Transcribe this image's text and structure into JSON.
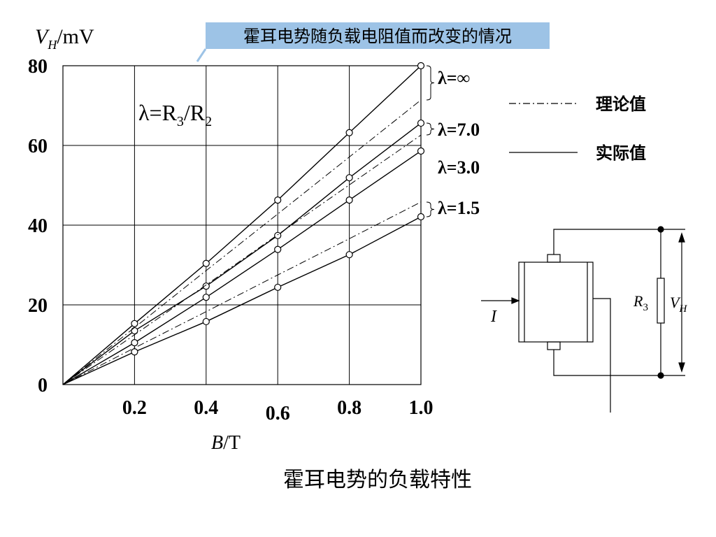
{
  "chart_data": {
    "type": "line",
    "banner": "霍耳电势随负载电阻值而改变的情况",
    "caption": "霍耳电势的负载特性",
    "formula": {
      "lhs": "λ=R",
      "sub1": "3",
      "mid": "/R",
      "sub2": "2"
    },
    "y_label": {
      "symbol": "V",
      "subscript": "H",
      "unit": "/mV"
    },
    "x_label": {
      "symbol": "B",
      "unit": "/T"
    },
    "x": [
      0,
      0.2,
      0.4,
      0.6,
      0.8,
      1.0
    ],
    "xlim": [
      0,
      1
    ],
    "ylim": [
      0,
      80
    ],
    "xticks": [
      0.2,
      0.4,
      0.6,
      0.8,
      {
        "value": 1,
        "label": "1.0"
      }
    ],
    "yticks": [
      0,
      20,
      40,
      60,
      80
    ],
    "grid": true,
    "color": "#000000",
    "series": [
      {
        "name": "λ=∞",
        "style": "solid",
        "values": [
          0,
          15.3,
          30.4,
          46.3,
          63.2,
          80
        ]
      },
      {
        "name": "λ=7.0",
        "style": "solid",
        "values": [
          0,
          13.5,
          24.7,
          37.4,
          51.9,
          65.6
        ]
      },
      {
        "name": "λ=3.0",
        "style": "solid",
        "values": [
          0,
          10.5,
          21.9,
          33.9,
          46.3,
          58.6
        ]
      },
      {
        "name": "λ=1.5",
        "style": "solid",
        "values": [
          0,
          8.2,
          15.8,
          24.4,
          32.6,
          42.1
        ]
      },
      {
        "style": "dashdot",
        "values": [
          0,
          14.3,
          28.6,
          42.8,
          57.1,
          71.4
        ]
      },
      {
        "style": "dashdot",
        "values": [
          0,
          12.5,
          25.0,
          37.6,
          50.1,
          62.6
        ]
      },
      {
        "style": "dashdot",
        "values": [
          0,
          9.2,
          18.3,
          27.5,
          36.6,
          45.8
        ]
      }
    ],
    "legend": [
      {
        "label": "理论值",
        "style": "dashdot"
      },
      {
        "label": "实际值",
        "style": "solid"
      }
    ],
    "diagram": {
      "current": "I",
      "resistor": {
        "symbol": "R",
        "subscript": "3"
      },
      "voltage": {
        "symbol": "V",
        "subscript": "H"
      }
    }
  }
}
